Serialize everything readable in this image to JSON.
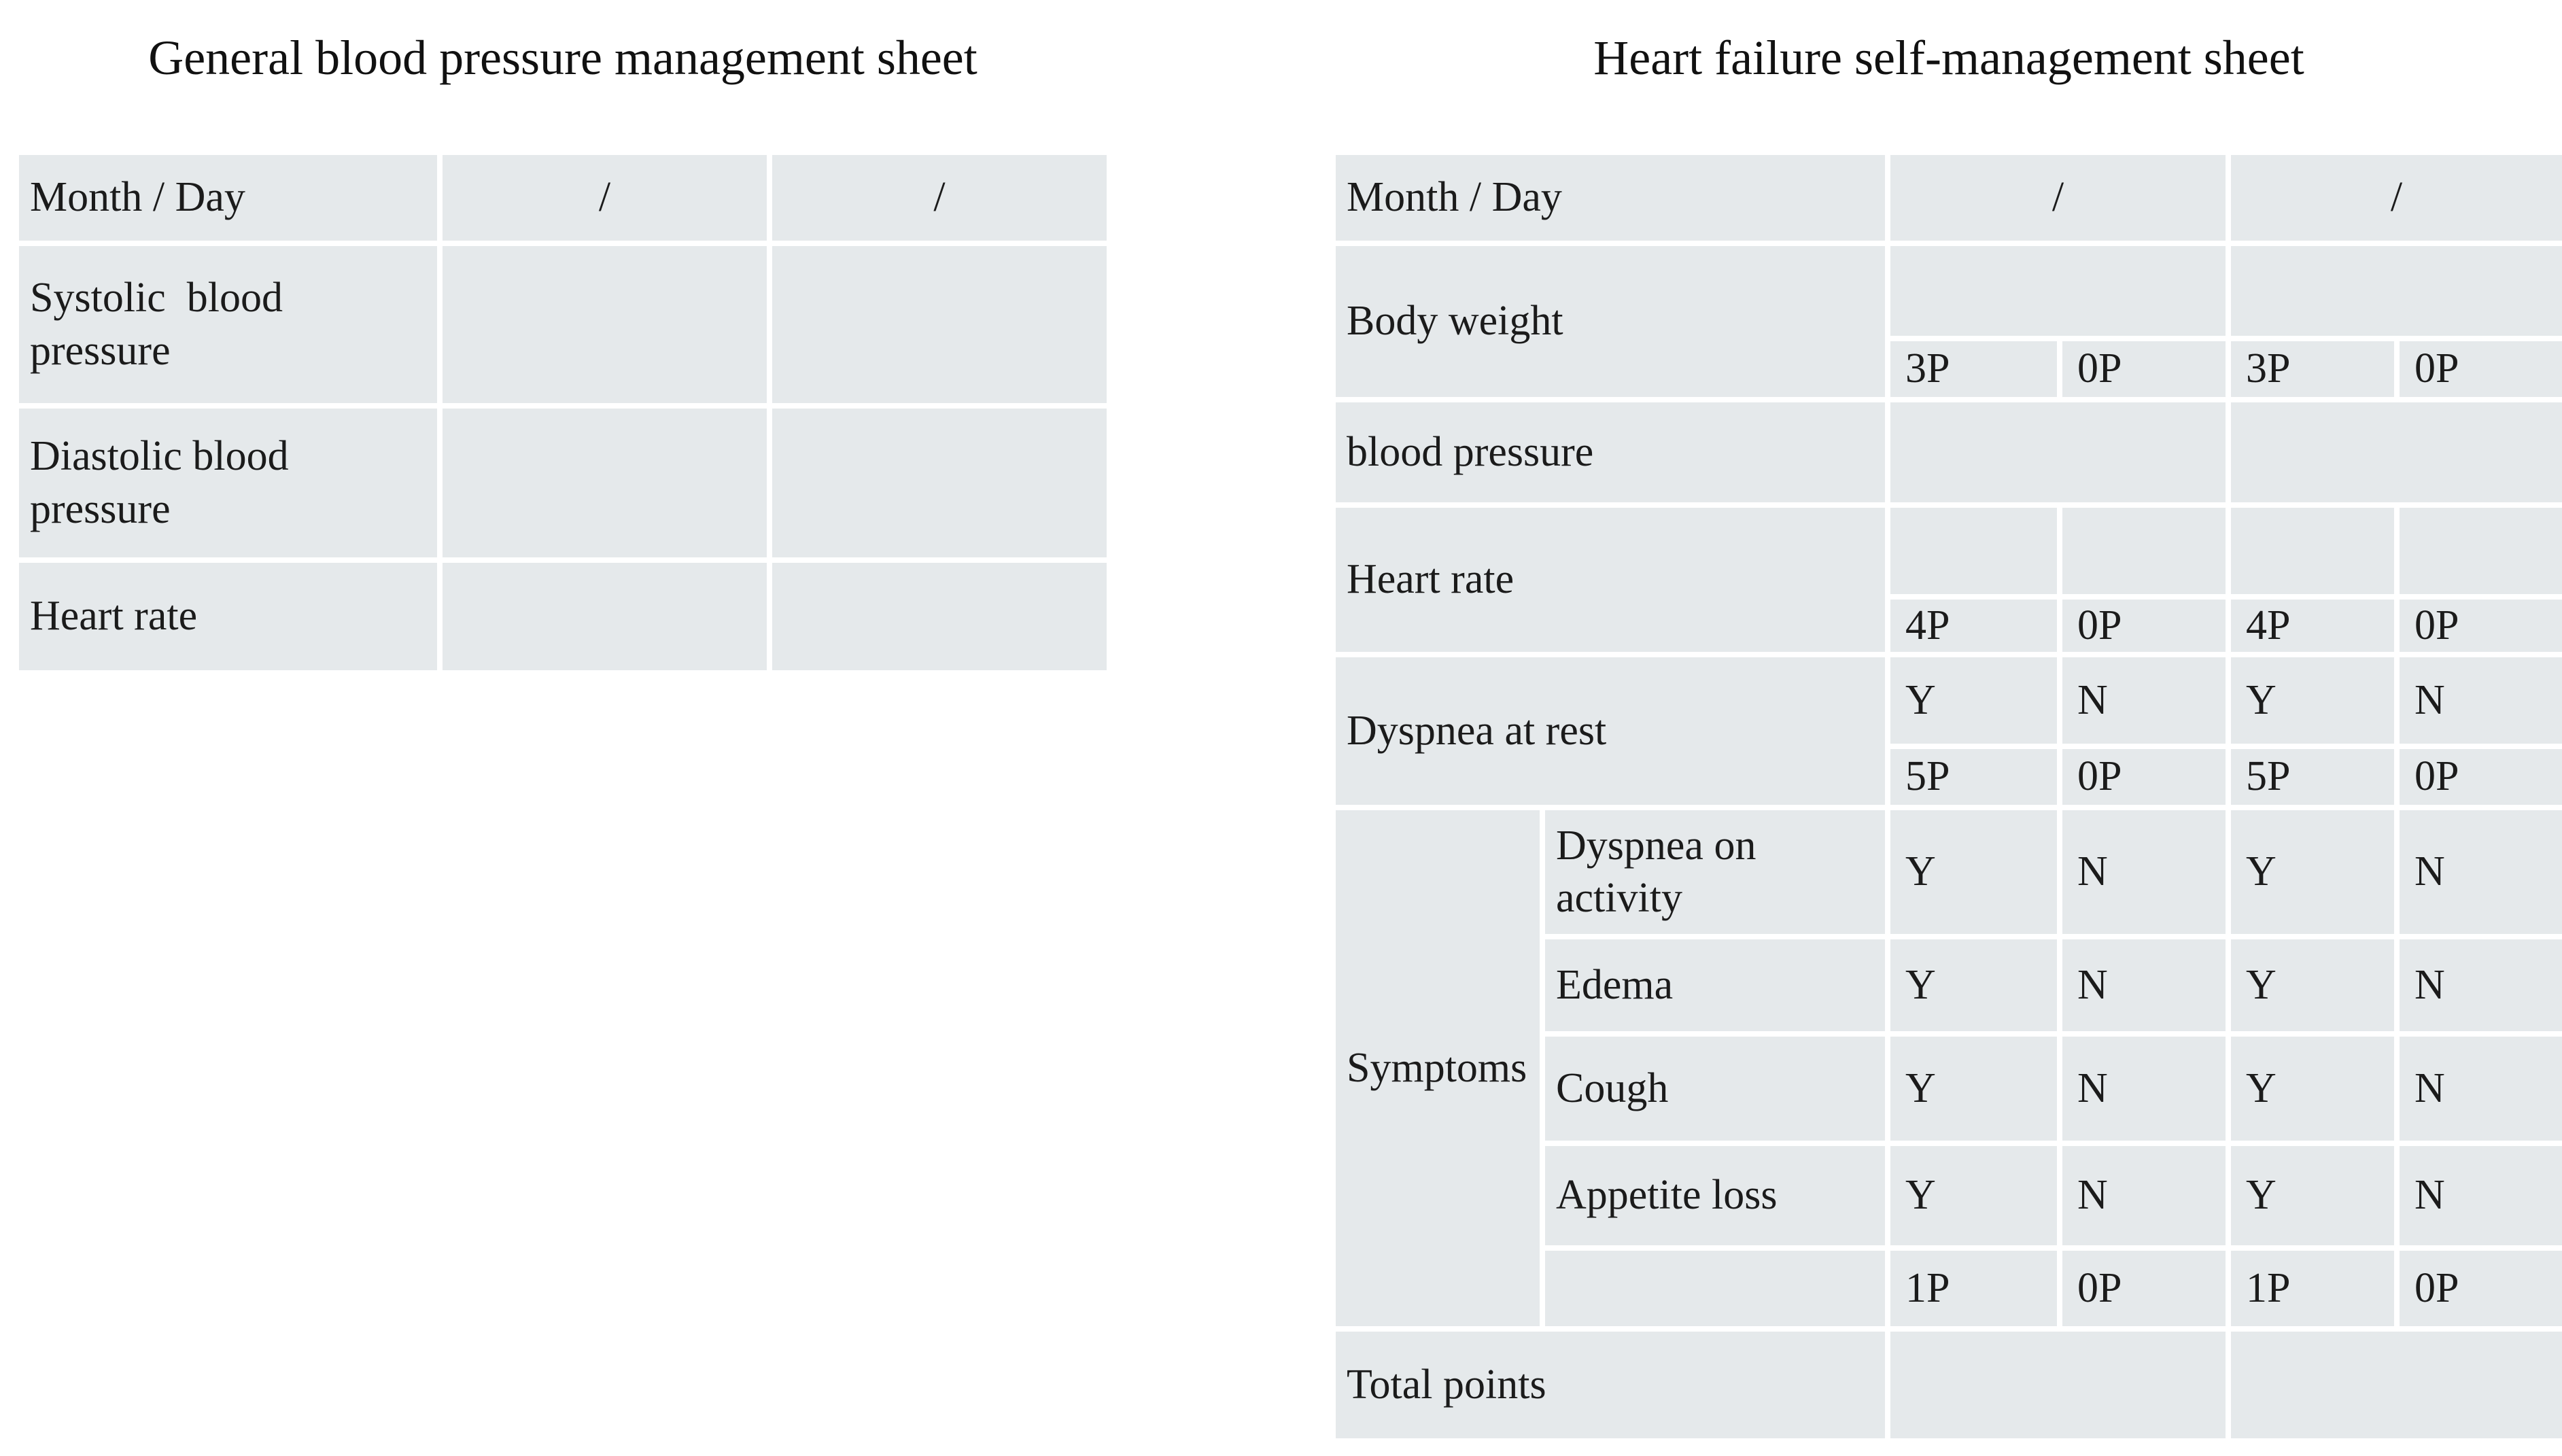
{
  "colors": {
    "cell_fill": "#e5e9eb",
    "grid_line": "#ffffff",
    "text": "#1b1b1b"
  },
  "left_table": {
    "title": "General blood pressure management sheet",
    "header": {
      "label": "Month / Day",
      "day1": "/",
      "day2": "/"
    },
    "rows": [
      {
        "label": "Systolic  blood pressure",
        "day1": "",
        "day2": ""
      },
      {
        "label": "Diastolic blood pressure",
        "day1": "",
        "day2": ""
      },
      {
        "label": "Heart rate",
        "day1": "",
        "day2": ""
      }
    ]
  },
  "right_table": {
    "title": "Heart failure self-management sheet",
    "header": {
      "label": "Month / Day",
      "day1": "/",
      "day2": "/"
    },
    "body_weight": {
      "label": "Body weight",
      "points": [
        "3P",
        "0P",
        "3P",
        "0P"
      ]
    },
    "blood_pressure": {
      "label": "blood pressure"
    },
    "heart_rate": {
      "label": "Heart rate",
      "points": [
        "4P",
        "0P",
        "4P",
        "0P"
      ]
    },
    "dyspnea_at_rest": {
      "label": "Dyspnea at rest",
      "yn": [
        "Y",
        "N",
        "Y",
        "N"
      ],
      "points": [
        "5P",
        "0P",
        "5P",
        "0P"
      ]
    },
    "symptoms": {
      "label": "Symptoms",
      "items": [
        {
          "label": "Dyspnea on activity",
          "yn": [
            "Y",
            "N",
            "Y",
            "N"
          ]
        },
        {
          "label": "Edema",
          "yn": [
            "Y",
            "N",
            "Y",
            "N"
          ]
        },
        {
          "label": "Cough",
          "yn": [
            "Y",
            "N",
            "Y",
            "N"
          ]
        },
        {
          "label": "Appetite loss",
          "yn": [
            "Y",
            "N",
            "Y",
            "N"
          ]
        }
      ],
      "points": [
        "1P",
        "0P",
        "1P",
        "0P"
      ]
    },
    "total_points": {
      "label": "Total points"
    }
  }
}
